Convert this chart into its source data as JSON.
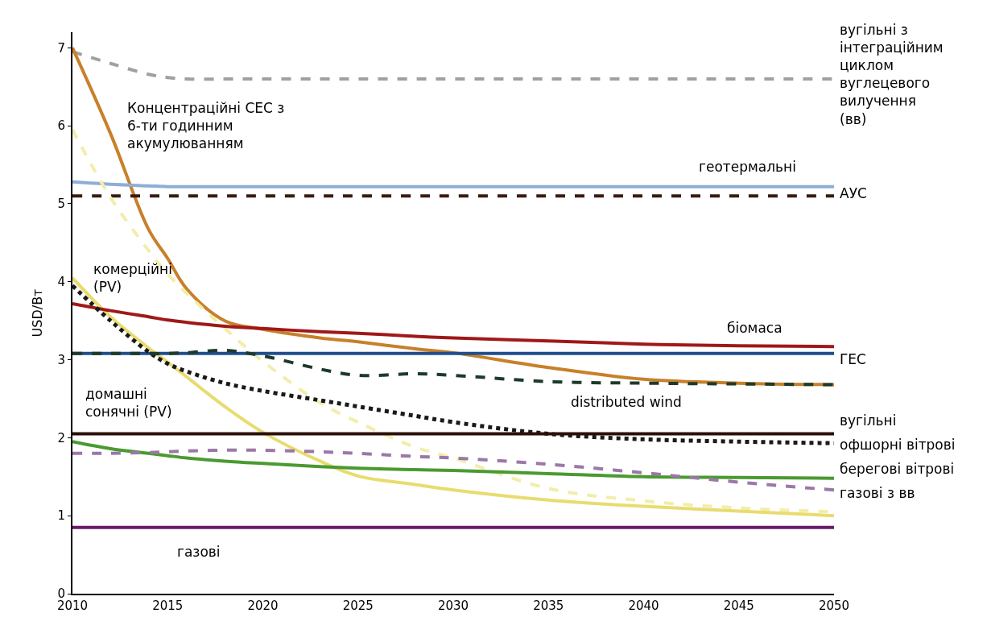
{
  "chart_data": {
    "type": "line",
    "ylabel": "USD/Вт",
    "x": [
      2010,
      2012,
      2014,
      2015,
      2016,
      2018,
      2020,
      2023,
      2025,
      2028,
      2030,
      2035,
      2040,
      2045,
      2050
    ],
    "xlim": [
      2010,
      2050
    ],
    "xticks": [
      2010,
      2015,
      2020,
      2025,
      2030,
      2035,
      2040,
      2045,
      2050
    ],
    "ylim": [
      0,
      7.2
    ],
    "yticks": [
      0,
      1,
      2,
      3,
      4,
      5,
      6,
      7
    ],
    "legend": false,
    "marker": "none",
    "series": [
      {
        "name": "вугільні з\nінтеграційним\nциклом\nвуглецевого\nвилучення\n(вв)",
        "color": "#a0a0a0",
        "line_style": "dashed",
        "values": [
          6.95,
          6.8,
          6.66,
          6.62,
          6.6,
          6.6,
          6.6,
          6.6,
          6.6,
          6.6,
          6.6,
          6.6,
          6.6,
          6.6,
          6.6
        ]
      },
      {
        "name": "Концентраційні СЕС з\n6-ти годинним\nакумулюванням",
        "color": "#c8802a",
        "line_style": "solid",
        "values": [
          7.0,
          5.9,
          4.67,
          4.3,
          3.91,
          3.5,
          3.39,
          3.28,
          3.23,
          3.14,
          3.09,
          2.9,
          2.75,
          2.7,
          2.68
        ]
      },
      {
        "name": "геотермальні",
        "color": "#8eaed6",
        "line_style": "solid",
        "values": [
          5.28,
          5.25,
          5.23,
          5.22,
          5.22,
          5.22,
          5.22,
          5.22,
          5.22,
          5.22,
          5.22,
          5.22,
          5.22,
          5.22,
          5.22
        ]
      },
      {
        "name": "АУС",
        "color": "#3a1a10",
        "line_style": "dashed",
        "values": [
          5.1,
          5.1,
          5.1,
          5.1,
          5.1,
          5.1,
          5.1,
          5.1,
          5.1,
          5.1,
          5.1,
          5.1,
          5.1,
          5.1,
          5.1
        ]
      },
      {
        "name": "комерційні\n(PV)",
        "color": "#f2eeaa",
        "line_style": "dashed",
        "values": [
          5.95,
          5.08,
          4.4,
          4.1,
          3.85,
          3.4,
          2.98,
          2.45,
          2.2,
          1.88,
          1.74,
          1.35,
          1.19,
          1.1,
          1.05
        ]
      },
      {
        "name": "домашні\nсонячні (PV)",
        "color": "#e8dc70",
        "line_style": "solid",
        "values": [
          4.05,
          3.55,
          3.15,
          2.97,
          2.78,
          2.4,
          2.07,
          1.7,
          1.51,
          1.4,
          1.33,
          1.2,
          1.12,
          1.06,
          1.0
        ]
      },
      {
        "name": "біомаса",
        "color": "#a01818",
        "line_style": "solid",
        "values": [
          3.72,
          3.63,
          3.55,
          3.51,
          3.48,
          3.43,
          3.4,
          3.36,
          3.34,
          3.3,
          3.28,
          3.24,
          3.2,
          3.18,
          3.17
        ]
      },
      {
        "name": "ГЕС",
        "color": "#1f4e8c",
        "line_style": "solid",
        "values": [
          3.08,
          3.08,
          3.08,
          3.08,
          3.08,
          3.08,
          3.08,
          3.08,
          3.08,
          3.08,
          3.08,
          3.08,
          3.08,
          3.08,
          3.08
        ]
      },
      {
        "name": "офшорні вітрові",
        "color": "#1a1a1a",
        "line_style": "dotted",
        "values": [
          3.95,
          3.5,
          3.1,
          2.95,
          2.85,
          2.7,
          2.6,
          2.48,
          2.4,
          2.28,
          2.2,
          2.05,
          1.98,
          1.95,
          1.93
        ]
      },
      {
        "name": "distributed wind",
        "color": "#1e3a2a",
        "line_style": "dashed",
        "values": [
          3.08,
          3.08,
          3.08,
          3.08,
          3.09,
          3.12,
          3.05,
          2.88,
          2.8,
          2.82,
          2.8,
          2.72,
          2.7,
          2.69,
          2.68
        ]
      },
      {
        "name": "вугільні",
        "color": "#2a1008",
        "line_style": "solid",
        "values": [
          2.05,
          2.05,
          2.05,
          2.05,
          2.05,
          2.05,
          2.05,
          2.05,
          2.05,
          2.05,
          2.05,
          2.05,
          2.05,
          2.05,
          2.05
        ]
      },
      {
        "name": "берегові вітрові",
        "color": "#4a9a30",
        "line_style": "solid",
        "values": [
          1.95,
          1.86,
          1.8,
          1.77,
          1.74,
          1.7,
          1.67,
          1.63,
          1.61,
          1.59,
          1.58,
          1.54,
          1.5,
          1.49,
          1.48
        ]
      },
      {
        "name": "газові з вв",
        "color": "#9a78a8",
        "line_style": "dashed",
        "values": [
          1.8,
          1.8,
          1.81,
          1.82,
          1.83,
          1.84,
          1.84,
          1.82,
          1.8,
          1.76,
          1.74,
          1.66,
          1.55,
          1.43,
          1.33
        ]
      },
      {
        "name": "газові",
        "color": "#6a1a6a",
        "line_style": "solid",
        "values": [
          0.85,
          0.85,
          0.85,
          0.85,
          0.85,
          0.85,
          0.85,
          0.85,
          0.85,
          0.85,
          0.85,
          0.85,
          0.85,
          0.85,
          0.85
        ]
      }
    ]
  }
}
